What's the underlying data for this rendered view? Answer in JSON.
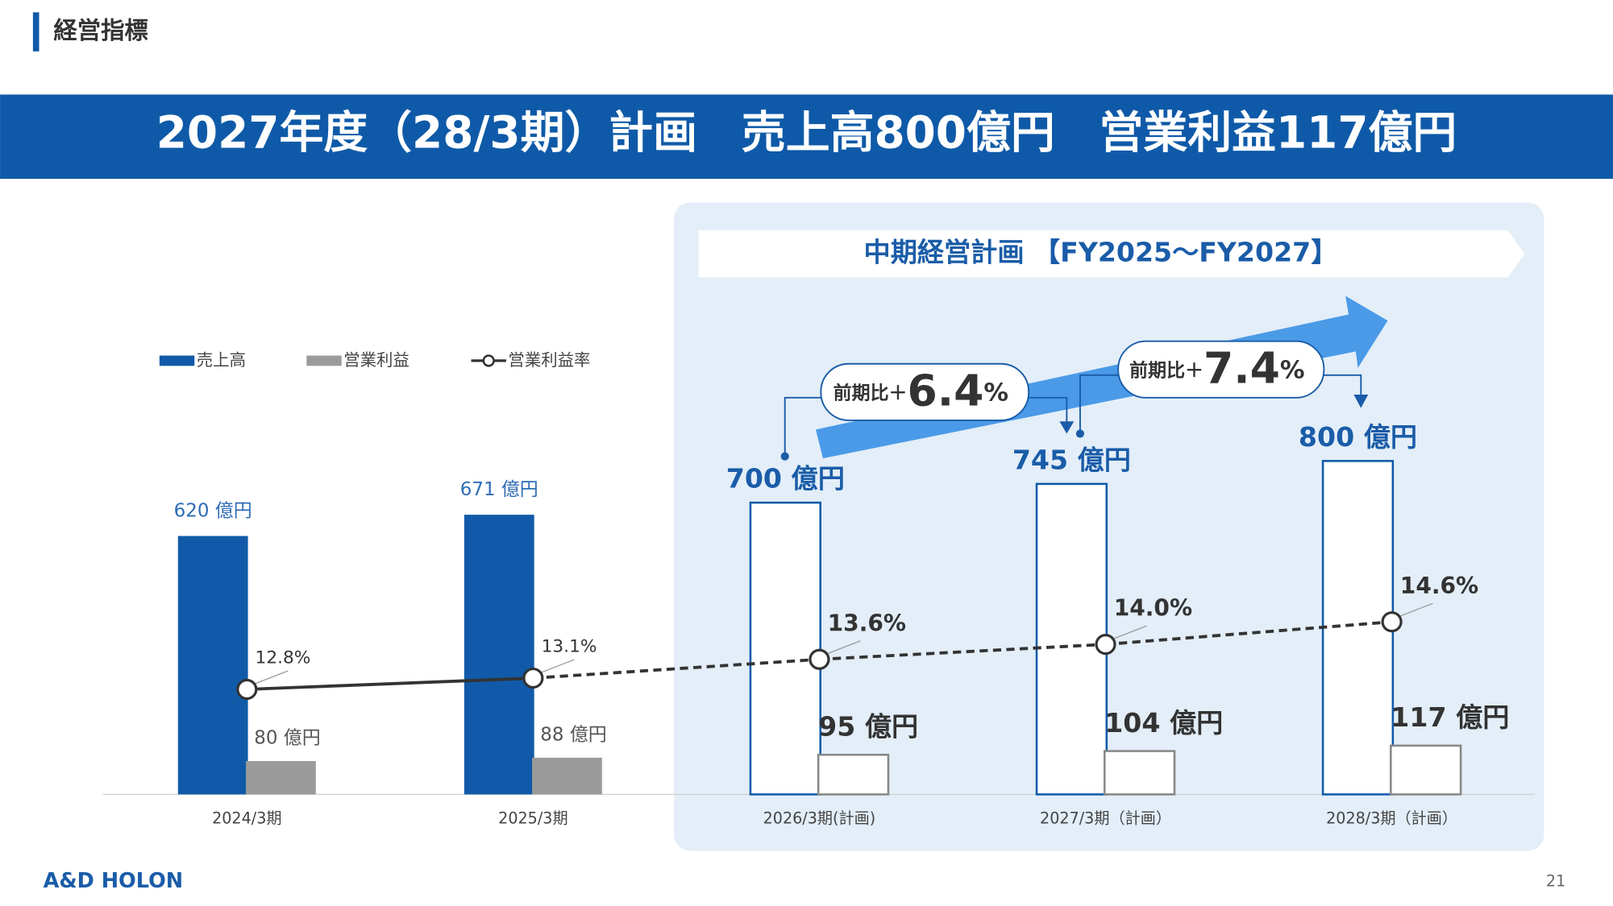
{
  "header": {
    "section": "経営指標",
    "banner": "2027年度（28/3期）計画　売上高800億円　営業利益117億円"
  },
  "chart_data": {
    "type": "bar",
    "categories": [
      "2024/3期",
      "2025/3期",
      "2026/3期(計画)",
      "2027/3期（計画）",
      "2028/3期（計画）"
    ],
    "series": [
      {
        "name": "売上高",
        "color": "#105aa9",
        "values": [
          620,
          671,
          700,
          745,
          800
        ],
        "value_labels": [
          "620 億円",
          "671 億円",
          "700 億円",
          "745 億円",
          "800 億円"
        ]
      },
      {
        "name": "営業利益",
        "color": "#9b9b9b",
        "values": [
          80,
          88,
          95,
          104,
          117
        ],
        "value_labels": [
          "80 億円",
          "88 億円",
          "95 億円",
          "104 億円",
          "117 億円"
        ]
      },
      {
        "name": "営業利益率",
        "type": "line",
        "axis": "y2",
        "color": "#333333",
        "values": [
          12.8,
          13.1,
          13.6,
          14.0,
          14.6
        ],
        "value_labels": [
          "12.8%",
          "13.1%",
          "13.6%",
          "14.0%",
          "14.6%"
        ]
      }
    ],
    "ylim": [
      0,
      900
    ],
    "y2lim": [
      10,
      20
    ],
    "planned_from_index": 2,
    "legend": "top-left"
  },
  "plan_box": {
    "title": "中期経営計画 【FY2025～FY2027】",
    "callouts": [
      {
        "prefix": "前期比＋",
        "value": 6.4,
        "unit": "%"
      },
      {
        "prefix": "前期比＋",
        "value": 7.4,
        "unit": "%"
      }
    ]
  },
  "footer": {
    "logo": "A&D HOLON",
    "page": "21"
  }
}
